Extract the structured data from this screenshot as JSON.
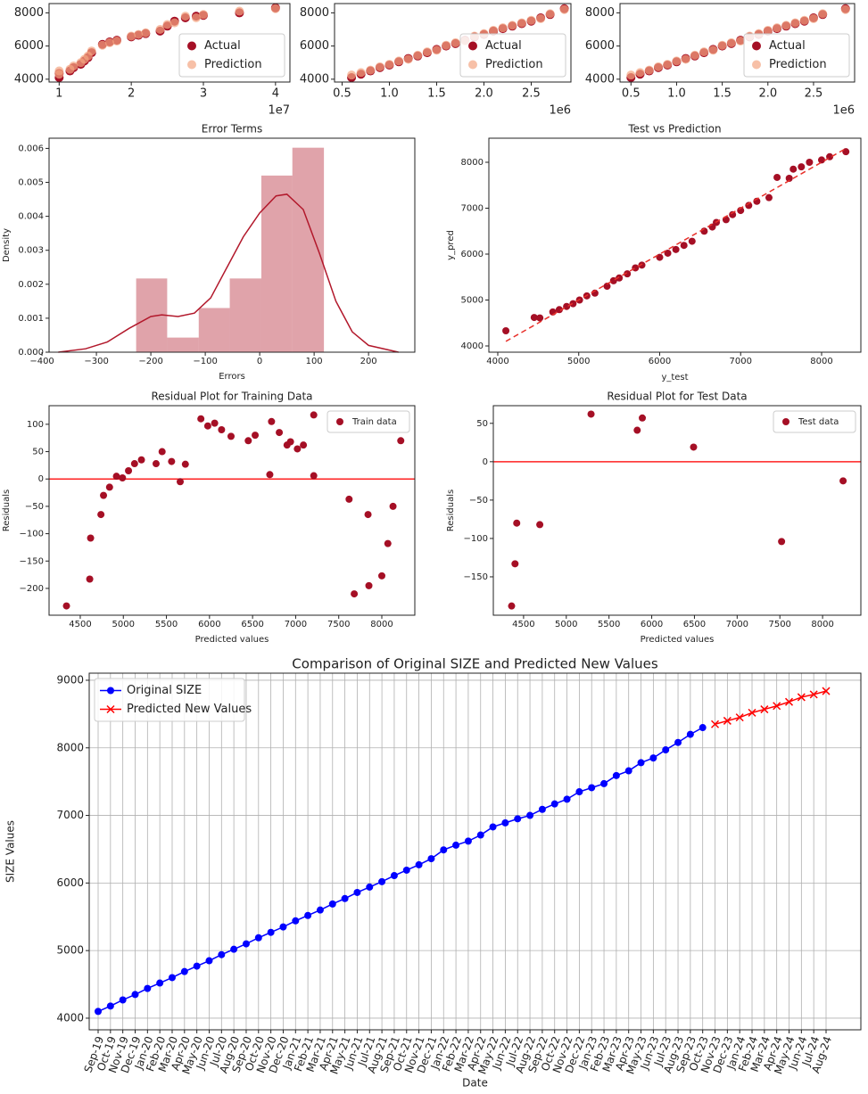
{
  "chart_data": [
    {
      "type": "scatter",
      "x_offset_label": "1e7",
      "x": [
        1.0,
        1.0,
        1.15,
        1.2,
        1.3,
        1.35,
        1.4,
        1.45,
        1.6,
        1.7,
        1.8,
        2.0,
        2.1,
        2.2,
        2.4,
        2.5,
        2.6,
        2.75,
        2.9,
        3.0,
        3.5,
        4.0
      ],
      "series": [
        {
          "name": "Actual",
          "color": "#a50f25",
          "values": [
            4100,
            4350,
            4500,
            4700,
            4900,
            5100,
            5300,
            5600,
            6100,
            6250,
            6350,
            6550,
            6650,
            6750,
            6900,
            7200,
            7500,
            7700,
            7800,
            7850,
            8000,
            8300
          ]
        },
        {
          "name": "Prediction",
          "color": "#f4a582",
          "values": [
            4300,
            4500,
            4600,
            4800,
            5000,
            5200,
            5400,
            5700,
            6050,
            6200,
            6300,
            6600,
            6700,
            6800,
            7000,
            7300,
            7400,
            7800,
            7700,
            7900,
            8100,
            8250
          ]
        }
      ],
      "xlim": [
        0.86,
        4.2
      ],
      "ylim": [
        3830,
        8560
      ],
      "xticks": [
        1,
        2,
        3,
        4
      ],
      "yticks": [
        4000,
        6000,
        8000
      ],
      "legend": "lower right"
    },
    {
      "type": "scatter",
      "x_offset_label": "1e6",
      "x": [
        0.6,
        0.7,
        0.8,
        0.9,
        1.0,
        1.1,
        1.2,
        1.3,
        1.4,
        1.5,
        1.6,
        1.7,
        1.8,
        1.9,
        2.0,
        2.1,
        2.2,
        2.3,
        2.4,
        2.5,
        2.6,
        2.7,
        2.85
      ],
      "series": [
        {
          "name": "Actual",
          "color": "#a50f25",
          "values": [
            4100,
            4300,
            4500,
            4700,
            4850,
            5050,
            5250,
            5400,
            5600,
            5800,
            6000,
            6150,
            6350,
            6550,
            6700,
            6900,
            7050,
            7200,
            7350,
            7500,
            7700,
            7900,
            8250
          ]
        },
        {
          "name": "Prediction",
          "color": "#f4a582",
          "values": [
            4250,
            4400,
            4550,
            4750,
            4900,
            5100,
            5200,
            5450,
            5650,
            5750,
            6050,
            6200,
            6300,
            6600,
            6750,
            6950,
            7100,
            7250,
            7400,
            7550,
            7650,
            7950,
            8200
          ]
        }
      ],
      "xlim": [
        0.42,
        2.92
      ],
      "ylim": [
        3830,
        8560
      ],
      "xticks": [
        0.5,
        {
          "value": 1,
          "label": "1.0"
        },
        1.5,
        {
          "value": 2,
          "label": "2.0"
        },
        2.5
      ],
      "yticks": [
        4000,
        6000,
        8000
      ],
      "legend": "lower right"
    },
    {
      "type": "scatter",
      "x_offset_label": "1e6",
      "x": [
        0.5,
        0.6,
        0.7,
        0.8,
        0.9,
        1.0,
        1.1,
        1.2,
        1.3,
        1.4,
        1.5,
        1.6,
        1.7,
        1.8,
        1.9,
        2.0,
        2.1,
        2.2,
        2.3,
        2.4,
        2.5,
        2.6,
        2.85
      ],
      "series": [
        {
          "name": "Actual",
          "color": "#a50f25",
          "values": [
            4100,
            4300,
            4500,
            4700,
            4850,
            5050,
            5250,
            5400,
            5600,
            5800,
            6000,
            6150,
            6350,
            6550,
            6700,
            6900,
            7050,
            7200,
            7350,
            7500,
            7700,
            7900,
            8250
          ]
        },
        {
          "name": "Prediction",
          "color": "#f4a582",
          "values": [
            4250,
            4400,
            4550,
            4750,
            4900,
            5100,
            5200,
            5450,
            5650,
            5750,
            6050,
            6200,
            6300,
            6600,
            6750,
            6950,
            7100,
            7250,
            7400,
            7550,
            7650,
            7950,
            8200
          ]
        }
      ],
      "xlim": [
        0.38,
        2.95
      ],
      "ylim": [
        3830,
        8560
      ],
      "xticks": [
        0.5,
        {
          "value": 1,
          "label": "1.0"
        },
        1.5,
        {
          "value": 2,
          "label": "2.0"
        },
        2.5
      ],
      "yticks": [
        4000,
        6000,
        8000
      ],
      "legend": "lower right"
    },
    {
      "type": "histogram",
      "title": "Error Terms",
      "x_label": "Errors",
      "y_label": "Density",
      "color": "#b2182b",
      "bins": [
        -227,
        -170,
        -112,
        -55,
        3,
        60,
        118
      ],
      "values": [
        0.00217,
        0.00043,
        0.0013,
        0.00217,
        0.0052,
        0.00602
      ],
      "kde": {
        "x": [
          -370,
          -320,
          -280,
          -240,
          -200,
          -180,
          -150,
          -120,
          -90,
          -60,
          -30,
          0,
          30,
          50,
          80,
          110,
          140,
          170,
          200,
          255
        ],
        "y": [
          0,
          0.0001,
          0.0003,
          0.0007,
          0.00105,
          0.0011,
          0.00105,
          0.00115,
          0.0016,
          0.0025,
          0.0034,
          0.0041,
          0.0046,
          0.00465,
          0.0042,
          0.0029,
          0.0015,
          0.0006,
          0.0002,
          0
        ]
      },
      "xlim": [
        -387,
        285
      ],
      "ylim": [
        0,
        0.0063
      ],
      "xticks": [
        {
          "value": -400,
          "label": "−400"
        },
        {
          "value": -300,
          "label": "−300"
        },
        {
          "value": -200,
          "label": "−200"
        },
        {
          "value": -100,
          "label": "−100"
        },
        0,
        100,
        200
      ],
      "yticks": [
        {
          "value": 0,
          "label": "0.000"
        },
        {
          "value": 0.001,
          "label": "0.001"
        },
        {
          "value": 0.002,
          "label": "0.002"
        },
        {
          "value": 0.003,
          "label": "0.003"
        },
        {
          "value": 0.004,
          "label": "0.004"
        },
        {
          "value": 0.005,
          "label": "0.005"
        },
        {
          "value": 0.006,
          "label": "0.006"
        }
      ]
    },
    {
      "type": "scatter",
      "title": "Test vs Prediction",
      "x_label": "y_test",
      "y_label": "y_pred",
      "series": [
        {
          "color": "#a50f25",
          "x": [
            4100,
            4450,
            4520,
            4680,
            4760,
            4850,
            4930,
            5010,
            5100,
            5200,
            5350,
            5430,
            5500,
            5600,
            5700,
            5780,
            6000,
            6100,
            6200,
            6300,
            6400,
            6550,
            6650,
            6700,
            6820,
            6900,
            7000,
            7100,
            7200,
            7350,
            7450,
            7600,
            7650,
            7750,
            7850,
            8000,
            8100,
            8300
          ],
          "values": [
            4330,
            4620,
            4610,
            4740,
            4790,
            4860,
            4920,
            5000,
            5090,
            5150,
            5300,
            5420,
            5480,
            5570,
            5700,
            5760,
            5930,
            6020,
            6100,
            6190,
            6280,
            6500,
            6590,
            6690,
            6750,
            6860,
            6950,
            7060,
            7150,
            7230,
            7670,
            7650,
            7850,
            7900,
            8000,
            8050,
            8120,
            8230
          ]
        }
      ],
      "reference_line": {
        "x": [
          4100,
          8300
        ],
        "y": [
          4100,
          8300
        ],
        "color": "#e8302a"
      },
      "xlim": [
        3890,
        8485
      ],
      "ylim": [
        3864,
        8524
      ],
      "xticks": [
        4000,
        5000,
        6000,
        7000,
        8000
      ],
      "yticks": [
        4000,
        5000,
        6000,
        7000,
        8000
      ]
    },
    {
      "type": "scatter",
      "title": "Residual Plot for Training Data",
      "x_label": "Predicted values",
      "y_label": "Residuals",
      "legend": "upper right",
      "series": [
        {
          "name": "Train data",
          "color": "#a50f25",
          "x": [
            4340,
            4620,
            4610,
            4740,
            4770,
            4840,
            4920,
            4990,
            5060,
            5130,
            5210,
            5380,
            5450,
            5560,
            5660,
            5720,
            5900,
            5980,
            6060,
            6140,
            6250,
            6450,
            6530,
            6700,
            6720,
            6810,
            6900,
            6940,
            7020,
            7090,
            7210,
            7210,
            7620,
            7680,
            7840,
            7850,
            8000,
            8070,
            8130,
            8220
          ],
          "values": [
            -232,
            -108,
            -183,
            -65,
            -30,
            -15,
            5,
            2,
            15,
            28,
            35,
            28,
            50,
            32,
            -5,
            27,
            110,
            97,
            102,
            90,
            78,
            70,
            80,
            8,
            105,
            85,
            62,
            68,
            55,
            62,
            117,
            6,
            -37,
            -210,
            -65,
            -195,
            -177,
            -118,
            -50,
            70
          ]
        }
      ],
      "reference_y": 0,
      "reference_color": "#ff2020",
      "xlim": [
        4138,
        8383
      ],
      "ylim": [
        -249,
        134
      ],
      "xticks": [
        4500,
        5000,
        5500,
        6000,
        6500,
        7000,
        7500,
        8000
      ],
      "yticks": [
        {
          "value": -200,
          "label": "−200"
        },
        {
          "value": -150,
          "label": "−150"
        },
        {
          "value": -100,
          "label": "−100"
        },
        {
          "value": -50,
          "label": "−50"
        },
        0,
        50,
        100
      ]
    },
    {
      "type": "scatter",
      "title": "Residual Plot for Test Data",
      "x_label": "Predicted values",
      "y_label": "Residuals",
      "legend": "upper right",
      "series": [
        {
          "name": "Test data",
          "color": "#a50f25",
          "x": [
            4360,
            4400,
            4420,
            4690,
            5290,
            5830,
            5890,
            6490,
            7520,
            8240
          ],
          "values": [
            -188,
            -133,
            -80,
            -82,
            62,
            41,
            57,
            19,
            -104,
            -25
          ]
        }
      ],
      "reference_y": 0,
      "reference_color": "#ff2020",
      "xlim": [
        4146,
        8448
      ],
      "ylim": [
        -200,
        73
      ],
      "xticks": [
        4500,
        5000,
        5500,
        6000,
        6500,
        7000,
        7500,
        8000
      ],
      "yticks": [
        {
          "value": -150,
          "label": "−150"
        },
        {
          "value": -100,
          "label": "−100"
        },
        {
          "value": -50,
          "label": "−50"
        },
        0,
        50
      ]
    },
    {
      "type": "line",
      "title": "Comparison of Original SIZE and Predicted New Values",
      "x_label": "Date",
      "y_label": "SIZE Values",
      "legend": "upper left",
      "grid": true,
      "categories": [
        "Sep-19",
        "Oct-19",
        "Nov-19",
        "Dec-19",
        "Jan-20",
        "Feb-20",
        "Mar-20",
        "Apr-20",
        "May-20",
        "Jun-20",
        "Jul-20",
        "Aug-20",
        "Sep-20",
        "Oct-20",
        "Nov-20",
        "Dec-20",
        "Jan-21",
        "Feb-21",
        "Mar-21",
        "Apr-21",
        "May-21",
        "Jun-21",
        "Jul-21",
        "Aug-21",
        "Sep-21",
        "Oct-21",
        "Nov-21",
        "Dec-21",
        "Jan-22",
        "Feb-22",
        "Mar-22",
        "Apr-22",
        "May-22",
        "Jun-22",
        "Jul-22",
        "Aug-22",
        "Sep-22",
        "Oct-22",
        "Nov-22",
        "Dec-22",
        "Jan-23",
        "Feb-23",
        "Mar-23",
        "Apr-23",
        "May-23",
        "Jun-23",
        "Jul-23",
        "Aug-23",
        "Sep-23",
        "Oct-23",
        "Nov-23",
        "Dec-23",
        "Jan-24",
        "Feb-24",
        "Mar-24",
        "Apr-24",
        "May-24",
        "Jun-24",
        "Jul-24",
        "Aug-24"
      ],
      "series": [
        {
          "name": "Original SIZE",
          "color": "#0000ff",
          "marker": "o",
          "values": [
            4100,
            4180,
            4270,
            4350,
            4440,
            4520,
            4600,
            4690,
            4770,
            4850,
            4940,
            5020,
            5100,
            5190,
            5270,
            5350,
            5440,
            5520,
            5600,
            5690,
            5770,
            5860,
            5940,
            6020,
            6110,
            6190,
            6270,
            6360,
            6490,
            6560,
            6620,
            6710,
            6830,
            6890,
            6950,
            7000,
            7090,
            7170,
            7240,
            7350,
            7410,
            7470,
            7590,
            7660,
            7780,
            7850,
            7970,
            8080,
            8200,
            8300,
            null,
            null,
            null,
            null,
            null,
            null,
            null,
            null,
            null,
            null
          ]
        },
        {
          "name": "Predicted New Values",
          "color": "#ff0000",
          "marker": "x",
          "values": [
            null,
            null,
            null,
            null,
            null,
            null,
            null,
            null,
            null,
            null,
            null,
            null,
            null,
            null,
            null,
            null,
            null,
            null,
            null,
            null,
            null,
            null,
            null,
            null,
            null,
            null,
            null,
            null,
            null,
            null,
            null,
            null,
            null,
            null,
            null,
            null,
            null,
            null,
            null,
            null,
            null,
            null,
            null,
            null,
            null,
            null,
            null,
            null,
            null,
            null,
            8350,
            8400,
            8450,
            8520,
            8570,
            8620,
            8680,
            8750,
            8790,
            8840
          ]
        }
      ],
      "ylim": [
        3828,
        9105
      ],
      "yticks": [
        4000,
        5000,
        6000,
        7000,
        8000,
        9000
      ]
    }
  ]
}
